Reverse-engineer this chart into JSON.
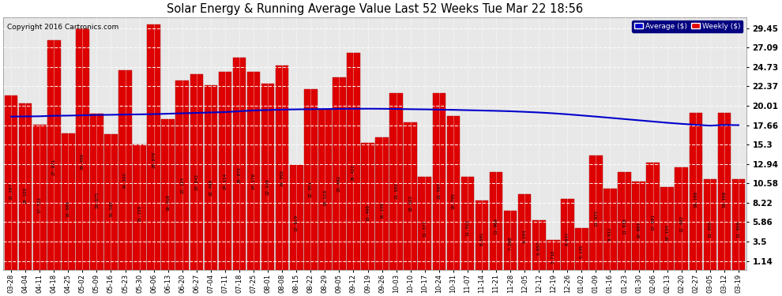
{
  "title": "Solar Energy & Running Average Value Last 52 Weeks Tue Mar 22 18:56",
  "copyright": "Copyright 2016 Cartronics.com",
  "bar_color": "#dd0000",
  "bar_edge_color": "#aa0000",
  "avg_line_color": "#0000cc",
  "background_color": "#ffffff",
  "plot_bg_color": "#e8e8e8",
  "yticks": [
    1.14,
    3.5,
    5.86,
    8.22,
    10.58,
    12.94,
    15.3,
    17.66,
    20.01,
    22.37,
    24.73,
    27.09,
    29.45
  ],
  "ymin": 0.0,
  "ymax": 30.8,
  "labels": [
    "03-28",
    "04-04",
    "04-11",
    "04-18",
    "04-25",
    "05-02",
    "05-09",
    "05-16",
    "05-23",
    "05-30",
    "06-06",
    "06-13",
    "06-20",
    "06-27",
    "07-04",
    "07-11",
    "07-18",
    "07-25",
    "08-01",
    "08-08",
    "08-15",
    "08-22",
    "08-29",
    "09-05",
    "09-12",
    "09-19",
    "09-26",
    "10-03",
    "10-10",
    "10-17",
    "10-24",
    "10-31",
    "11-07",
    "11-14",
    "11-21",
    "11-28",
    "12-05",
    "12-12",
    "12-19",
    "12-26",
    "01-02",
    "01-09",
    "01-16",
    "01-23",
    "01-30",
    "02-06",
    "02-13",
    "02-20",
    "02-27",
    "03-05",
    "03-12",
    "03-19"
  ],
  "values": [
    21.287,
    20.328,
    17.722,
    27.971,
    16.68,
    29.45,
    19.075,
    16.592,
    24.332,
    15.339,
    29.879,
    18.418,
    23.124,
    23.843,
    22.49,
    24.114,
    25.872,
    24.178,
    22.676,
    24.958,
    12.819,
    22.051,
    19.519,
    23.492,
    26.422,
    15.49,
    16.156,
    21.582,
    18.022,
    11.377,
    21.597,
    18.795,
    11.413,
    8.501,
    11.969,
    7.208,
    9.244,
    6.057,
    3.718,
    8.647,
    5.145,
    13.973,
    9.912,
    11.938,
    10.803,
    13.081,
    10.154,
    12.492,
    19.108,
    11.05,
    19.108,
    11.05
  ],
  "avg_values": [
    18.7,
    18.72,
    18.74,
    18.8,
    18.82,
    18.86,
    18.9,
    18.92,
    18.95,
    18.97,
    19.0,
    19.05,
    19.1,
    19.15,
    19.2,
    19.25,
    19.35,
    19.45,
    19.5,
    19.55,
    19.58,
    19.6,
    19.62,
    19.64,
    19.65,
    19.66,
    19.65,
    19.63,
    19.6,
    19.58,
    19.55,
    19.52,
    19.48,
    19.44,
    19.4,
    19.35,
    19.28,
    19.2,
    19.1,
    18.98,
    18.84,
    18.7,
    18.55,
    18.4,
    18.25,
    18.1,
    17.95,
    17.82,
    17.7,
    17.6,
    17.68,
    17.66
  ],
  "bar_value_labels": [
    "21.287",
    "20.328",
    "17.722",
    "27.971",
    "16.680",
    "29.450",
    "19.075",
    "16.592",
    "24.332",
    "15.339",
    "29.879",
    "18.418",
    "23.124",
    "23.843",
    "22.490",
    "24.114",
    "25.872",
    "24.178",
    "22.676",
    "24.958",
    "12.819",
    "22.051",
    "19.519",
    "23.492",
    "26.422",
    "15.490",
    "16.156",
    "21.582",
    "18.022",
    "11.377",
    "21.597",
    "18.795",
    "11.413",
    "8.501",
    "11.969",
    "7.208",
    "9.244",
    "6.057",
    "3.718",
    "8.647",
    "5.145",
    "13.973",
    "9.912",
    "11.938",
    "10.803",
    "13.081",
    "10.154",
    "12.492",
    "19.108",
    "11.050",
    "19.108",
    "11.050"
  ],
  "legend_avg_label": "Average ($)",
  "legend_weekly_label": "Weekly ($)"
}
